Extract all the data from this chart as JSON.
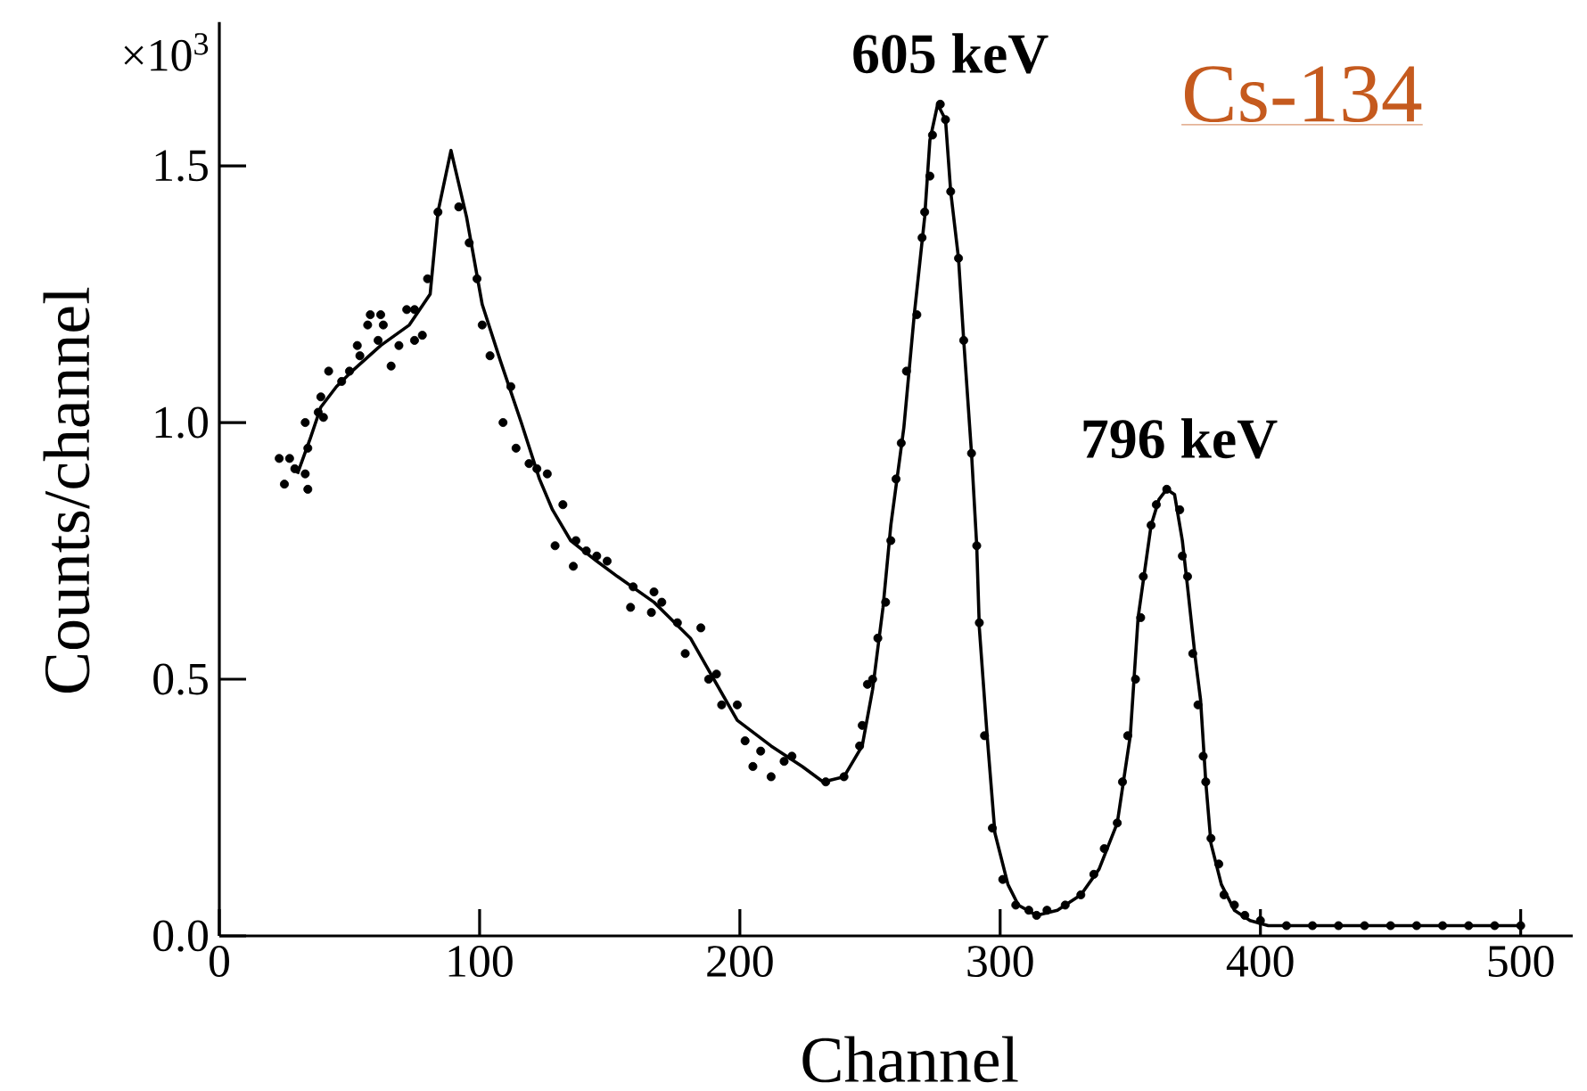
{
  "chart_data": {
    "type": "scatter",
    "title": "Cs-134",
    "xlabel": "Channel",
    "ylabel": "Counts/channel",
    "annotations": [
      "×10$^{3}$",
      {
        "text": "605 keV",
        "x": 276,
        "y": 1.62
      },
      {
        "text": "796 keV",
        "x": 364,
        "y": 0.87
      }
    ],
    "xlim": [
      0,
      520
    ],
    "ylim": [
      0,
      1.78
    ],
    "xticks": [
      0,
      100,
      200,
      300,
      400,
      500
    ],
    "yticks": [
      {
        "value": 0,
        "label": "0.0"
      },
      0.5,
      {
        "value": 1,
        "label": "1.0"
      },
      1.5
    ],
    "series": [
      {
        "color": "#000000",
        "marker": "circle",
        "x": [
          23,
          25,
          27,
          29,
          33,
          34,
          34,
          33,
          38,
          40,
          39,
          42,
          47,
          50,
          53,
          54,
          57,
          58,
          62,
          63,
          61,
          66,
          69,
          72,
          75,
          75,
          78,
          80,
          84,
          92,
          96,
          99,
          101,
          104,
          109,
          112,
          114,
          119,
          122,
          126,
          132,
          129,
          136,
          137,
          141,
          145,
          149,
          158,
          159,
          166,
          167,
          170,
          176,
          179,
          185,
          188,
          191,
          193,
          199,
          202,
          205,
          208,
          212,
          217,
          220,
          233,
          240,
          246,
          247,
          249,
          251,
          253,
          256,
          258,
          260,
          262,
          264,
          268,
          270,
          271,
          273,
          274,
          277,
          279,
          281,
          284,
          286,
          289,
          291,
          292,
          294,
          297,
          301,
          306,
          311,
          314,
          318,
          325,
          331,
          336,
          340,
          345,
          347,
          349,
          352,
          354,
          355,
          358,
          360,
          364,
          369,
          370,
          372,
          374,
          376,
          378,
          379,
          381,
          384,
          386,
          390,
          394,
          400,
          410,
          420,
          430,
          440,
          450,
          460,
          470,
          480,
          490,
          500
        ],
        "values": [
          0.93,
          0.88,
          0.93,
          0.91,
          0.9,
          0.87,
          0.95,
          1.0,
          1.02,
          1.01,
          1.05,
          1.1,
          1.08,
          1.1,
          1.15,
          1.13,
          1.19,
          1.21,
          1.21,
          1.19,
          1.16,
          1.11,
          1.15,
          1.22,
          1.22,
          1.16,
          1.17,
          1.28,
          1.41,
          1.42,
          1.35,
          1.28,
          1.19,
          1.13,
          1.0,
          1.07,
          0.95,
          0.92,
          0.91,
          0.9,
          0.84,
          0.76,
          0.72,
          0.77,
          0.75,
          0.74,
          0.73,
          0.64,
          0.68,
          0.63,
          0.67,
          0.65,
          0.61,
          0.55,
          0.6,
          0.5,
          0.51,
          0.45,
          0.45,
          0.38,
          0.33,
          0.36,
          0.31,
          0.34,
          0.35,
          0.3,
          0.31,
          0.37,
          0.41,
          0.49,
          0.5,
          0.58,
          0.65,
          0.77,
          0.89,
          0.96,
          1.1,
          1.21,
          1.36,
          1.41,
          1.48,
          1.56,
          1.62,
          1.59,
          1.45,
          1.32,
          1.16,
          0.94,
          0.76,
          0.61,
          0.39,
          0.21,
          0.11,
          0.06,
          0.05,
          0.04,
          0.05,
          0.06,
          0.08,
          0.12,
          0.17,
          0.22,
          0.3,
          0.39,
          0.5,
          0.62,
          0.7,
          0.8,
          0.84,
          0.87,
          0.83,
          0.74,
          0.7,
          0.55,
          0.45,
          0.35,
          0.3,
          0.19,
          0.14,
          0.08,
          0.06,
          0.04,
          0.03,
          0.02,
          0.02,
          0.02,
          0.02,
          0.02,
          0.02,
          0.02,
          0.02,
          0.02,
          0.02
        ]
      },
      {
        "type": "line",
        "color": "#000000",
        "x": [
          30,
          35,
          39,
          45,
          51,
          62,
          73,
          81,
          84,
          89,
          95,
          101,
          108,
          116,
          123,
          128,
          135,
          145,
          153,
          167,
          181,
          190,
          199,
          212,
          224,
          232,
          240,
          247,
          251,
          255,
          258,
          263,
          267,
          271,
          273,
          276,
          279,
          281,
          284,
          286,
          289,
          291,
          292,
          295,
          298,
          303,
          307,
          314,
          322,
          331,
          338,
          345,
          350,
          353,
          358,
          361,
          364,
          367,
          370,
          372,
          375,
          377,
          379,
          381,
          385,
          390,
          396,
          403,
          500
        ],
        "values": [
          0.9,
          0.97,
          1.03,
          1.07,
          1.1,
          1.15,
          1.19,
          1.25,
          1.41,
          1.53,
          1.4,
          1.23,
          1.12,
          1.0,
          0.89,
          0.83,
          0.77,
          0.73,
          0.7,
          0.65,
          0.58,
          0.5,
          0.42,
          0.37,
          0.33,
          0.3,
          0.31,
          0.37,
          0.48,
          0.64,
          0.8,
          0.99,
          1.21,
          1.4,
          1.55,
          1.62,
          1.59,
          1.45,
          1.32,
          1.16,
          0.94,
          0.76,
          0.6,
          0.39,
          0.2,
          0.1,
          0.06,
          0.04,
          0.05,
          0.08,
          0.13,
          0.22,
          0.39,
          0.62,
          0.8,
          0.85,
          0.87,
          0.86,
          0.77,
          0.68,
          0.54,
          0.46,
          0.3,
          0.18,
          0.1,
          0.05,
          0.03,
          0.02,
          0.02
        ]
      }
    ]
  }
}
